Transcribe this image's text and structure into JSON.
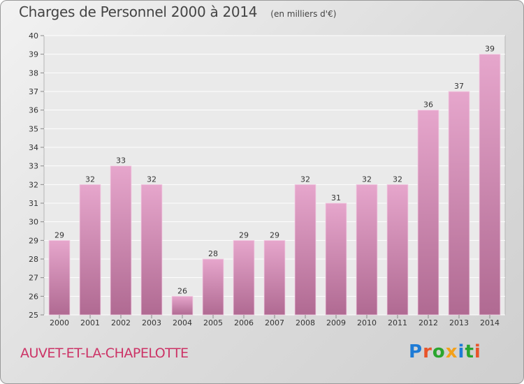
{
  "header": {
    "title": "Charges de Personnel 2000 à 2014",
    "subtitle": "(en milliers d'€)"
  },
  "footer": {
    "commune": "AUVET-ET-LA-CHAPELOTTE",
    "logo_text": "Proxiti"
  },
  "colors": {
    "bar_top": "#e6a6cc",
    "bar_bottom": "#b06a92",
    "plot_bg": "#eaeaea",
    "grid": "#ffffff",
    "commune_text": "#cc3366"
  },
  "chart_data": {
    "type": "bar",
    "title": "Charges de Personnel 2000 à 2014",
    "subtitle": "(en milliers d'€)",
    "categories": [
      "2000",
      "2001",
      "2002",
      "2003",
      "2004",
      "2005",
      "2006",
      "2007",
      "2008",
      "2009",
      "2010",
      "2011",
      "2012",
      "2013",
      "2014"
    ],
    "values": [
      29,
      32,
      33,
      32,
      26,
      28,
      29,
      29,
      32,
      31,
      32,
      32,
      36,
      37,
      39
    ],
    "ylim": [
      25,
      40
    ],
    "yticks": [
      25,
      26,
      27,
      28,
      29,
      30,
      31,
      32,
      33,
      34,
      35,
      36,
      37,
      38,
      39,
      40
    ],
    "grid": true,
    "data_labels": true
  }
}
